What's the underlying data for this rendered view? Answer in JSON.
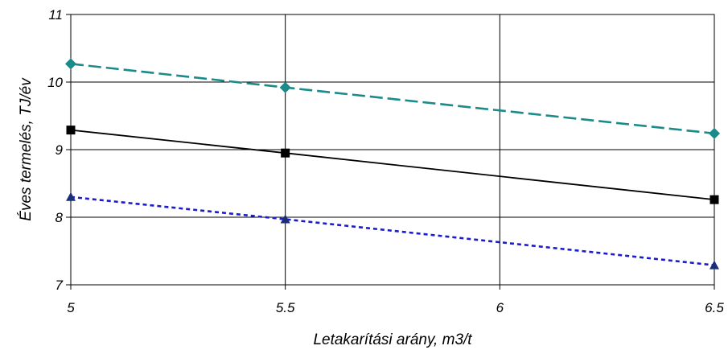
{
  "chart_data": {
    "type": "line",
    "title": "",
    "xlabel": "Letakarítási arány, m3/t",
    "ylabel": "Éves termelés,  TJ/év",
    "x": [
      5,
      5.5,
      6.5
    ],
    "xlim": [
      5,
      6.5
    ],
    "ylim": [
      7,
      11
    ],
    "xticks": [
      "5",
      "5.5",
      "6",
      "6.5"
    ],
    "yticks": [
      "7",
      "8",
      "9",
      "10",
      "11"
    ],
    "grid": true,
    "series": [
      {
        "values": [
          10.27,
          9.92,
          9.24
        ],
        "color": "#1a8a8a",
        "dash": "dashed",
        "marker": "diamond"
      },
      {
        "values": [
          9.29,
          8.95,
          8.26
        ],
        "color": "#000000",
        "dash": "solid",
        "marker": "square"
      },
      {
        "values": [
          8.3,
          7.97,
          7.29
        ],
        "color": "#1c1ccc",
        "dash": "dotted",
        "marker": "triangle",
        "marker_color": "#1a2e7a"
      }
    ]
  }
}
